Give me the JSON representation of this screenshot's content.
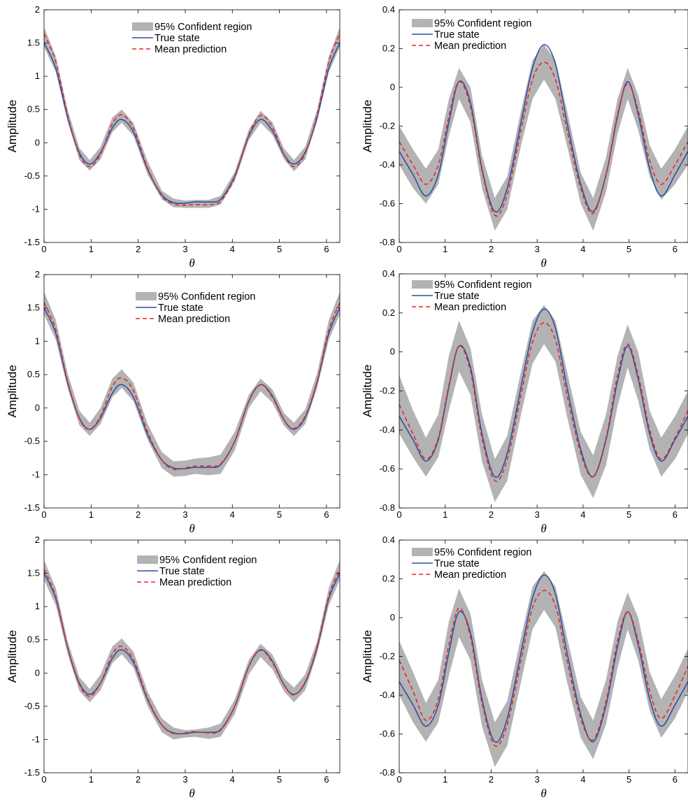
{
  "legend": {
    "band_label": "95% Confident region",
    "true_label": "True state",
    "mean_label": "Mean prediction"
  },
  "colors": {
    "band": "#b3b3b3",
    "true_state": "#2e4fa3",
    "mean_prediction": "#e8262a",
    "axes": "#000000",
    "background": "#ffffff"
  },
  "chart_data": [
    {
      "type": "line",
      "panel": "row1-left",
      "xlabel": "θ",
      "ylabel": "Amplitude",
      "xlim": [
        0,
        6.2832
      ],
      "ylim": [
        -1.5,
        2
      ],
      "xticks": [
        "0",
        "1",
        "2",
        "3",
        "4",
        "5",
        "6"
      ],
      "yticks": [
        "-1.5",
        "-1",
        "-0.5",
        "0",
        "0.5",
        "1",
        "1.5",
        "2"
      ],
      "legend_position": "top-center",
      "x": [
        0,
        0.25,
        0.5,
        0.75,
        0.97,
        1.2,
        1.45,
        1.65,
        1.9,
        2.2,
        2.5,
        2.75,
        3.0,
        3.2,
        3.5,
        3.75,
        4.05,
        4.35,
        4.6,
        4.85,
        5.1,
        5.31,
        5.55,
        5.8,
        6.05,
        6.2832
      ],
      "series": [
        {
          "name": "True state",
          "values": [
            1.5,
            1.12,
            0.38,
            -0.15,
            -0.32,
            -0.15,
            0.22,
            0.35,
            0.16,
            -0.4,
            -0.78,
            -0.9,
            -0.91,
            -0.89,
            -0.89,
            -0.85,
            -0.5,
            0.1,
            0.35,
            0.18,
            -0.18,
            -0.32,
            -0.14,
            0.38,
            1.12,
            1.5
          ]
        },
        {
          "name": "Mean prediction",
          "values": [
            1.64,
            1.22,
            0.42,
            -0.18,
            -0.36,
            -0.17,
            0.28,
            0.42,
            0.22,
            -0.38,
            -0.8,
            -0.92,
            -0.94,
            -0.93,
            -0.93,
            -0.88,
            -0.52,
            0.12,
            0.41,
            0.24,
            -0.18,
            -0.36,
            -0.16,
            0.42,
            1.22,
            1.64
          ]
        },
        {
          "name": "95% Confident region lower",
          "values": [
            1.44,
            1.06,
            0.32,
            -0.26,
            -0.42,
            -0.25,
            0.16,
            0.3,
            0.1,
            -0.48,
            -0.85,
            -0.97,
            -0.98,
            -0.98,
            -0.98,
            -0.93,
            -0.58,
            0.04,
            0.3,
            0.12,
            -0.25,
            -0.43,
            -0.25,
            0.32,
            1.06,
            1.44
          ]
        },
        {
          "name": "95% Confident region upper",
          "values": [
            1.74,
            1.3,
            0.5,
            -0.08,
            -0.26,
            -0.06,
            0.38,
            0.5,
            0.3,
            -0.28,
            -0.72,
            -0.84,
            -0.87,
            -0.86,
            -0.86,
            -0.8,
            -0.44,
            0.2,
            0.48,
            0.31,
            -0.09,
            -0.26,
            -0.06,
            0.5,
            1.3,
            1.74
          ]
        }
      ]
    },
    {
      "type": "line",
      "panel": "row1-right",
      "xlabel": "θ",
      "ylabel": "Amplitude",
      "xlim": [
        0,
        6.2832
      ],
      "ylim": [
        -0.8,
        0.4
      ],
      "xticks": [
        "0",
        "1",
        "2",
        "3",
        "4",
        "5",
        "6"
      ],
      "yticks": [
        "-0.8",
        "-0.6",
        "-0.4",
        "-0.2",
        "0",
        "0.2",
        "0.4"
      ],
      "legend_position": "top-left",
      "x": [
        0,
        0.3,
        0.58,
        0.85,
        1.08,
        1.3,
        1.55,
        1.8,
        2.08,
        2.35,
        2.65,
        2.9,
        3.15,
        3.4,
        3.65,
        3.95,
        4.22,
        4.5,
        4.75,
        4.97,
        5.2,
        5.45,
        5.7,
        6.0,
        6.2832
      ],
      "series": [
        {
          "name": "True state",
          "values": [
            -0.33,
            -0.45,
            -0.56,
            -0.45,
            -0.18,
            0.03,
            -0.08,
            -0.42,
            -0.64,
            -0.52,
            -0.18,
            0.1,
            0.22,
            0.12,
            -0.18,
            -0.5,
            -0.64,
            -0.45,
            -0.15,
            0.03,
            -0.14,
            -0.42,
            -0.56,
            -0.45,
            -0.33
          ]
        },
        {
          "name": "Mean prediction",
          "values": [
            -0.28,
            -0.4,
            -0.5,
            -0.4,
            -0.15,
            0.03,
            -0.1,
            -0.43,
            -0.66,
            -0.55,
            -0.22,
            0.04,
            0.13,
            0.04,
            -0.22,
            -0.52,
            -0.65,
            -0.45,
            -0.14,
            0.02,
            -0.12,
            -0.38,
            -0.5,
            -0.4,
            -0.28
          ]
        },
        {
          "name": "95% Confident region lower",
          "values": [
            -0.4,
            -0.52,
            -0.6,
            -0.5,
            -0.25,
            -0.06,
            -0.18,
            -0.52,
            -0.74,
            -0.63,
            -0.3,
            -0.06,
            0.04,
            -0.06,
            -0.3,
            -0.6,
            -0.74,
            -0.54,
            -0.24,
            -0.06,
            -0.22,
            -0.46,
            -0.58,
            -0.5,
            -0.4
          ]
        },
        {
          "name": "95% Confident region upper",
          "values": [
            -0.2,
            -0.32,
            -0.42,
            -0.32,
            -0.06,
            0.1,
            0.0,
            -0.35,
            -0.57,
            -0.46,
            -0.12,
            0.14,
            0.22,
            0.14,
            -0.12,
            -0.44,
            -0.57,
            -0.36,
            -0.06,
            0.1,
            -0.04,
            -0.3,
            -0.42,
            -0.32,
            -0.2
          ]
        }
      ]
    },
    {
      "type": "line",
      "panel": "row2-left",
      "xlabel": "θ",
      "ylabel": "Amplitude",
      "xlim": [
        0,
        6.2832
      ],
      "ylim": [
        -1.5,
        2
      ],
      "xticks": [
        "0",
        "1",
        "2",
        "3",
        "4",
        "5",
        "6"
      ],
      "yticks": [
        "-1.5",
        "-1",
        "-0.5",
        "0",
        "0.5",
        "1",
        "1.5",
        "2"
      ],
      "legend_position": "top-center",
      "x": [
        0,
        0.25,
        0.5,
        0.75,
        0.97,
        1.2,
        1.45,
        1.65,
        1.9,
        2.2,
        2.5,
        2.75,
        3.0,
        3.2,
        3.5,
        3.75,
        4.05,
        4.35,
        4.6,
        4.85,
        5.1,
        5.31,
        5.55,
        5.8,
        6.05,
        6.2832
      ],
      "series": [
        {
          "name": "True state",
          "values": [
            1.5,
            1.12,
            0.38,
            -0.15,
            -0.32,
            -0.15,
            0.22,
            0.35,
            0.16,
            -0.4,
            -0.78,
            -0.9,
            -0.91,
            -0.89,
            -0.89,
            -0.85,
            -0.5,
            0.1,
            0.35,
            0.18,
            -0.18,
            -0.32,
            -0.14,
            0.38,
            1.12,
            1.5
          ]
        },
        {
          "name": "Mean prediction",
          "values": [
            1.58,
            1.17,
            0.4,
            -0.16,
            -0.32,
            -0.12,
            0.32,
            0.45,
            0.26,
            -0.36,
            -0.78,
            -0.92,
            -0.9,
            -0.87,
            -0.87,
            -0.84,
            -0.5,
            0.1,
            0.35,
            0.16,
            -0.18,
            -0.31,
            -0.12,
            0.4,
            1.17,
            1.58
          ]
        },
        {
          "name": "95% Confident region lower",
          "values": [
            1.4,
            1.02,
            0.3,
            -0.26,
            -0.42,
            -0.24,
            0.16,
            0.3,
            0.1,
            -0.48,
            -0.9,
            -1.03,
            -1.02,
            -0.99,
            -1.01,
            -0.99,
            -0.64,
            0.0,
            0.25,
            0.08,
            -0.27,
            -0.42,
            -0.24,
            0.3,
            1.02,
            1.4
          ]
        },
        {
          "name": "95% Confident region upper",
          "values": [
            1.74,
            1.32,
            0.52,
            -0.04,
            -0.22,
            0.0,
            0.44,
            0.58,
            0.38,
            -0.24,
            -0.66,
            -0.8,
            -0.79,
            -0.76,
            -0.74,
            -0.7,
            -0.36,
            0.2,
            0.44,
            0.28,
            -0.08,
            -0.22,
            -0.02,
            0.52,
            1.32,
            1.74
          ]
        }
      ]
    },
    {
      "type": "line",
      "panel": "row2-right",
      "xlabel": "θ",
      "ylabel": "Amplitude",
      "xlim": [
        0,
        6.2832
      ],
      "ylim": [
        -0.8,
        0.4
      ],
      "xticks": [
        "0",
        "1",
        "2",
        "3",
        "4",
        "5",
        "6"
      ],
      "yticks": [
        "-0.8",
        "-0.6",
        "-0.4",
        "-0.2",
        "0",
        "0.2",
        "0.4"
      ],
      "legend_position": "top-left",
      "x": [
        0,
        0.3,
        0.58,
        0.85,
        1.08,
        1.3,
        1.55,
        1.8,
        2.08,
        2.35,
        2.65,
        2.9,
        3.15,
        3.4,
        3.65,
        3.95,
        4.22,
        4.5,
        4.75,
        4.97,
        5.2,
        5.45,
        5.7,
        6.0,
        6.2832
      ],
      "series": [
        {
          "name": "True state",
          "values": [
            -0.33,
            -0.45,
            -0.56,
            -0.45,
            -0.18,
            0.03,
            -0.08,
            -0.42,
            -0.64,
            -0.52,
            -0.18,
            0.1,
            0.22,
            0.12,
            -0.18,
            -0.5,
            -0.64,
            -0.45,
            -0.15,
            0.03,
            -0.14,
            -0.42,
            -0.56,
            -0.45,
            -0.33
          ]
        },
        {
          "name": "Mean prediction",
          "values": [
            -0.27,
            -0.42,
            -0.55,
            -0.44,
            -0.17,
            0.03,
            -0.1,
            -0.44,
            -0.66,
            -0.55,
            -0.22,
            0.05,
            0.15,
            0.06,
            -0.22,
            -0.52,
            -0.64,
            -0.44,
            -0.12,
            0.04,
            -0.12,
            -0.4,
            -0.55,
            -0.44,
            -0.3
          ]
        },
        {
          "name": "95% Confident region lower",
          "values": [
            -0.42,
            -0.54,
            -0.64,
            -0.54,
            -0.3,
            -0.1,
            -0.22,
            -0.56,
            -0.77,
            -0.66,
            -0.32,
            -0.06,
            0.04,
            -0.05,
            -0.33,
            -0.63,
            -0.75,
            -0.58,
            -0.28,
            -0.08,
            -0.25,
            -0.5,
            -0.64,
            -0.55,
            -0.42
          ]
        },
        {
          "name": "95% Confident region upper",
          "values": [
            -0.12,
            -0.3,
            -0.44,
            -0.32,
            -0.02,
            0.16,
            0.02,
            -0.32,
            -0.55,
            -0.43,
            -0.1,
            0.16,
            0.24,
            0.16,
            -0.1,
            -0.41,
            -0.53,
            -0.32,
            -0.02,
            0.14,
            0.0,
            -0.3,
            -0.44,
            -0.33,
            -0.2
          ]
        }
      ]
    },
    {
      "type": "line",
      "panel": "row3-left",
      "xlabel": "θ",
      "ylabel": "Amplitude",
      "xlim": [
        0,
        6.2832
      ],
      "ylim": [
        -1.5,
        2
      ],
      "xticks": [
        "0",
        "1",
        "2",
        "3",
        "4",
        "5",
        "6"
      ],
      "yticks": [
        "-1.5",
        "-1",
        "-0.5",
        "0",
        "0.5",
        "1",
        "1.5",
        "2"
      ],
      "legend_position": "top-center",
      "x": [
        0,
        0.25,
        0.5,
        0.75,
        0.97,
        1.2,
        1.45,
        1.65,
        1.9,
        2.2,
        2.5,
        2.75,
        3.0,
        3.2,
        3.5,
        3.75,
        4.05,
        4.35,
        4.6,
        4.85,
        5.1,
        5.31,
        5.55,
        5.8,
        6.05,
        6.2832
      ],
      "series": [
        {
          "name": "True state",
          "values": [
            1.5,
            1.12,
            0.38,
            -0.15,
            -0.32,
            -0.15,
            0.22,
            0.35,
            0.16,
            -0.4,
            -0.78,
            -0.9,
            -0.91,
            -0.89,
            -0.89,
            -0.85,
            -0.5,
            0.1,
            0.35,
            0.18,
            -0.18,
            -0.32,
            -0.14,
            0.38,
            1.12,
            1.5
          ]
        },
        {
          "name": "Mean prediction",
          "values": [
            1.56,
            1.15,
            0.38,
            -0.17,
            -0.35,
            -0.15,
            0.28,
            0.4,
            0.2,
            -0.38,
            -0.78,
            -0.91,
            -0.9,
            -0.88,
            -0.9,
            -0.86,
            -0.5,
            0.1,
            0.34,
            0.16,
            -0.18,
            -0.33,
            -0.13,
            0.4,
            1.16,
            1.56
          ]
        },
        {
          "name": "95% Confident region lower",
          "values": [
            1.4,
            1.02,
            0.29,
            -0.27,
            -0.44,
            -0.26,
            0.15,
            0.28,
            0.08,
            -0.5,
            -0.89,
            -1.0,
            -0.97,
            -0.96,
            -0.99,
            -0.96,
            -0.62,
            -0.02,
            0.24,
            0.06,
            -0.28,
            -0.44,
            -0.26,
            0.29,
            1.02,
            1.4
          ]
        },
        {
          "name": "95% Confident region upper",
          "values": [
            1.7,
            1.28,
            0.48,
            -0.06,
            -0.24,
            -0.02,
            0.4,
            0.52,
            0.32,
            -0.28,
            -0.68,
            -0.82,
            -0.86,
            -0.85,
            -0.82,
            -0.76,
            -0.4,
            0.2,
            0.44,
            0.28,
            -0.08,
            -0.22,
            -0.02,
            0.48,
            1.28,
            1.7
          ]
        }
      ]
    },
    {
      "type": "line",
      "panel": "row3-right",
      "xlabel": "θ",
      "ylabel": "Amplitude",
      "xlim": [
        0,
        6.2832
      ],
      "ylim": [
        -0.8,
        0.4
      ],
      "xticks": [
        "0",
        "1",
        "2",
        "3",
        "4",
        "5",
        "6"
      ],
      "yticks": [
        "-0.8",
        "-0.6",
        "-0.4",
        "-0.2",
        "0",
        "0.2",
        "0.4"
      ],
      "legend_position": "top-left",
      "x": [
        0,
        0.3,
        0.58,
        0.85,
        1.08,
        1.3,
        1.55,
        1.8,
        2.08,
        2.35,
        2.65,
        2.9,
        3.15,
        3.4,
        3.65,
        3.95,
        4.22,
        4.5,
        4.75,
        4.97,
        5.2,
        5.45,
        5.7,
        6.0,
        6.2832
      ],
      "series": [
        {
          "name": "True state",
          "values": [
            -0.33,
            -0.45,
            -0.56,
            -0.45,
            -0.18,
            0.03,
            -0.08,
            -0.42,
            -0.64,
            -0.52,
            -0.18,
            0.1,
            0.22,
            0.12,
            -0.18,
            -0.5,
            -0.64,
            -0.45,
            -0.15,
            0.03,
            -0.14,
            -0.42,
            -0.56,
            -0.45,
            -0.33
          ]
        },
        {
          "name": "Mean prediction",
          "values": [
            -0.22,
            -0.38,
            -0.53,
            -0.42,
            -0.14,
            0.05,
            -0.1,
            -0.44,
            -0.66,
            -0.55,
            -0.22,
            0.05,
            0.14,
            0.06,
            -0.22,
            -0.52,
            -0.63,
            -0.43,
            -0.12,
            0.03,
            -0.12,
            -0.38,
            -0.52,
            -0.4,
            -0.25
          ]
        },
        {
          "name": "95% Confident region lower",
          "values": [
            -0.4,
            -0.54,
            -0.64,
            -0.54,
            -0.3,
            -0.1,
            -0.22,
            -0.56,
            -0.77,
            -0.66,
            -0.33,
            -0.06,
            0.04,
            -0.05,
            -0.33,
            -0.62,
            -0.73,
            -0.55,
            -0.26,
            -0.06,
            -0.22,
            -0.48,
            -0.62,
            -0.52,
            -0.38
          ]
        },
        {
          "name": "95% Confident region upper",
          "values": [
            -0.12,
            -0.28,
            -0.44,
            -0.32,
            -0.02,
            0.15,
            0.02,
            -0.32,
            -0.54,
            -0.43,
            -0.1,
            0.16,
            0.24,
            0.16,
            -0.1,
            -0.41,
            -0.53,
            -0.32,
            -0.02,
            0.13,
            0.0,
            -0.28,
            -0.42,
            -0.3,
            -0.16
          ]
        }
      ]
    }
  ]
}
